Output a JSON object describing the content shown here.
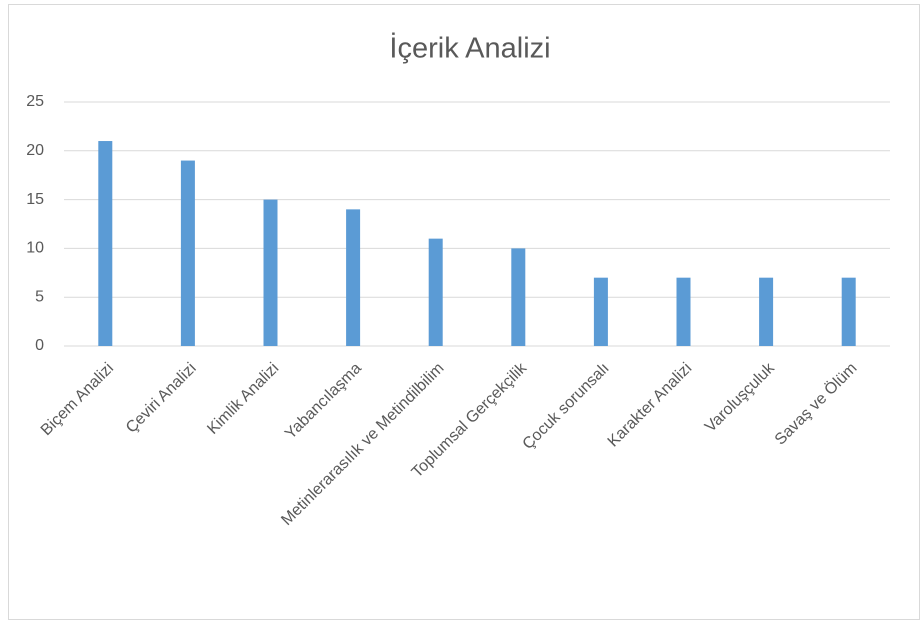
{
  "chart_data": {
    "type": "bar",
    "title": "İçerik Analizi",
    "categories": [
      "Biçem Analizi",
      "Çeviri Analizi",
      "Kimlik Analizi",
      "Yabancılaşma",
      "Metinlerarasılık ve Metindilbilim",
      "Toplumsal Gerçekçilik",
      "Çocuk sorunsalı",
      "Karakter Analizi",
      "Varoluşçuluk",
      "Savaş ve Ölüm"
    ],
    "values": [
      21,
      19,
      15,
      14,
      11,
      10,
      7,
      7,
      7,
      7
    ],
    "color": "#5b9bd5",
    "ylim": [
      0,
      25
    ],
    "yticks": [
      0,
      5,
      10,
      15,
      20,
      25
    ],
    "grid": true
  }
}
